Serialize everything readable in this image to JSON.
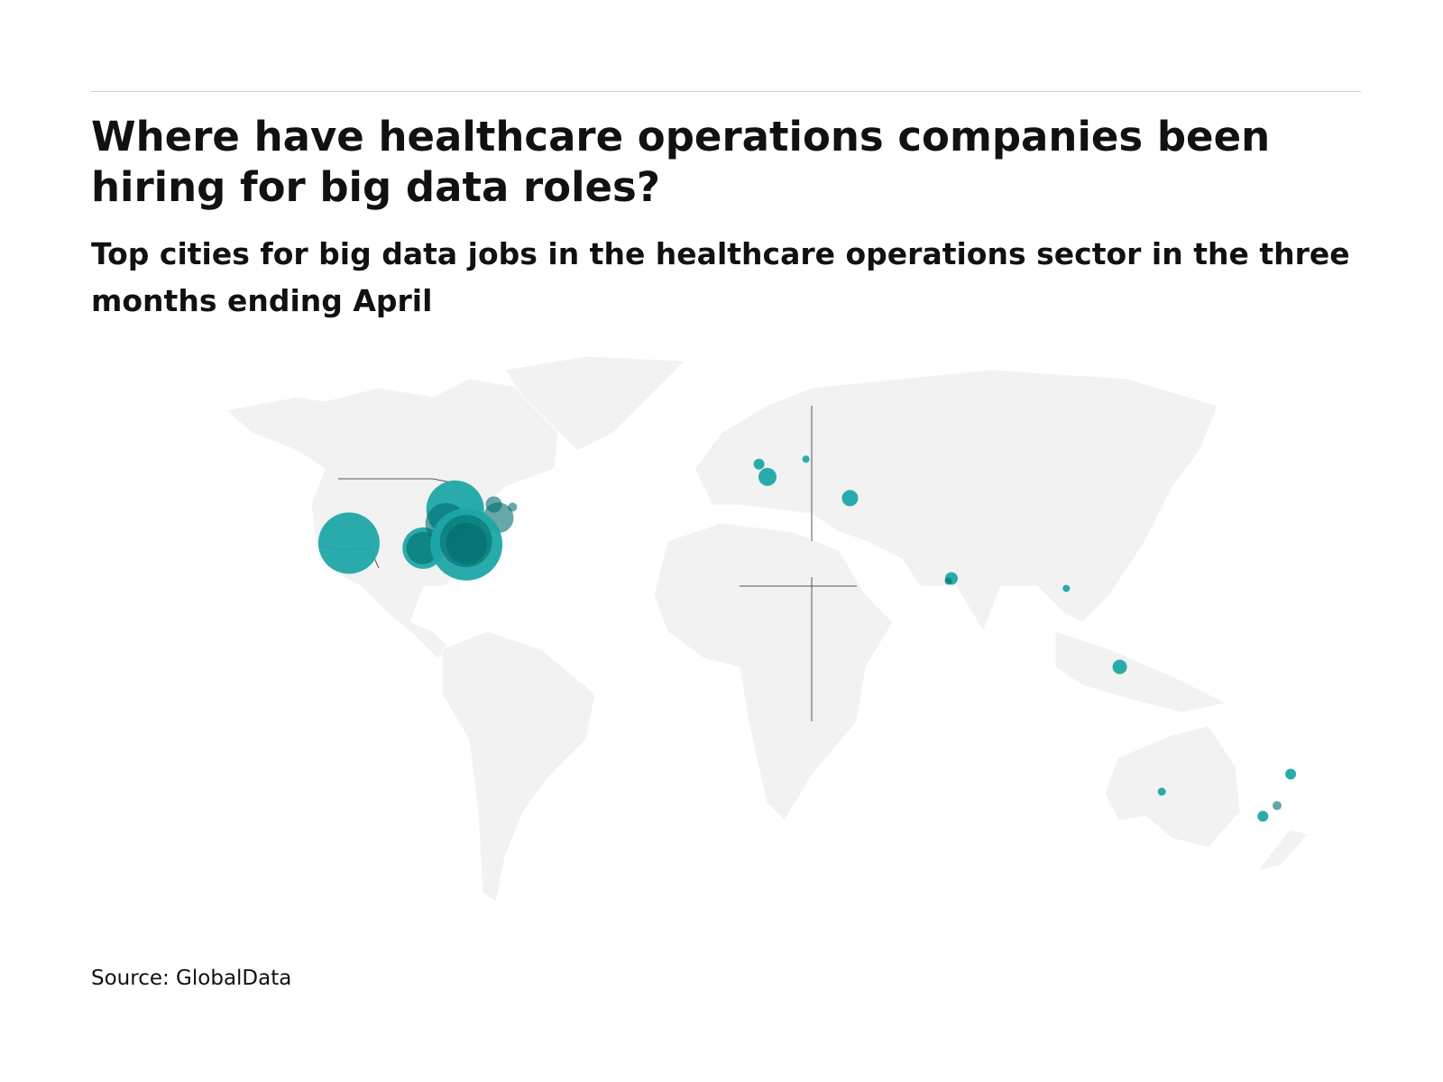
{
  "header": {
    "title": "Where have healthcare operations companies been hiring for big data roles?",
    "subtitle": "Top cities for big data jobs in the healthcare operations sector in the three months ending April"
  },
  "footer": {
    "source": "Source: GlobalData"
  },
  "colors": {
    "bubble": "#1fa6a6",
    "bubble_dark": "#006d6d",
    "land": "#f2f2f2",
    "border": "#555555"
  },
  "map": {
    "type": "bubble map",
    "projection": "world",
    "bubbles": [
      {
        "lon": -118.2,
        "lat": 34.0,
        "size": 34,
        "shade": "light"
      },
      {
        "lon": -96.8,
        "lat": 32.8,
        "size": 23,
        "shade": "light"
      },
      {
        "lon": -97.0,
        "lat": 32.8,
        "size": 18,
        "shade": "dark"
      },
      {
        "lon": -87.6,
        "lat": 41.9,
        "size": 32,
        "shade": "light"
      },
      {
        "lon": -90.2,
        "lat": 38.6,
        "size": 23,
        "shade": "dark"
      },
      {
        "lon": -75.2,
        "lat": 40.0,
        "size": 17,
        "shade": "dark"
      },
      {
        "lon": -76.5,
        "lat": 43.0,
        "size": 9,
        "shade": "dark"
      },
      {
        "lon": -71.1,
        "lat": 42.4,
        "size": 5,
        "shade": "dark"
      },
      {
        "lon": -84.4,
        "lat": 33.7,
        "size": 40,
        "shade": "light"
      },
      {
        "lon": -84.5,
        "lat": 34.5,
        "size": 29,
        "shade": "dark"
      },
      {
        "lon": -84.3,
        "lat": 33.9,
        "size": 23,
        "shade": "dark"
      },
      {
        "lon": -0.1,
        "lat": 51.5,
        "size": 6,
        "shade": "light"
      },
      {
        "lon": 2.35,
        "lat": 48.9,
        "size": 10,
        "shade": "light"
      },
      {
        "lon": 13.4,
        "lat": 52.5,
        "size": 4,
        "shade": "light"
      },
      {
        "lon": 26.1,
        "lat": 44.4,
        "size": 9,
        "shade": "light"
      },
      {
        "lon": 55.3,
        "lat": 25.2,
        "size": 7,
        "shade": "light"
      },
      {
        "lon": 54.4,
        "lat": 24.5,
        "size": 4,
        "shade": "dark"
      },
      {
        "lon": 88.4,
        "lat": 22.6,
        "size": 4,
        "shade": "light"
      },
      {
        "lon": 103.8,
        "lat": 1.35,
        "size": 8,
        "shade": "light"
      },
      {
        "lon": 115.9,
        "lat": -31.9,
        "size": 4.5,
        "shade": "light"
      },
      {
        "lon": 153.0,
        "lat": -27.5,
        "size": 6,
        "shade": "light"
      },
      {
        "lon": 149.1,
        "lat": -35.3,
        "size": 5,
        "shade": "dark"
      },
      {
        "lon": 145.0,
        "lat": -37.8,
        "size": 6,
        "shade": "light"
      }
    ]
  }
}
